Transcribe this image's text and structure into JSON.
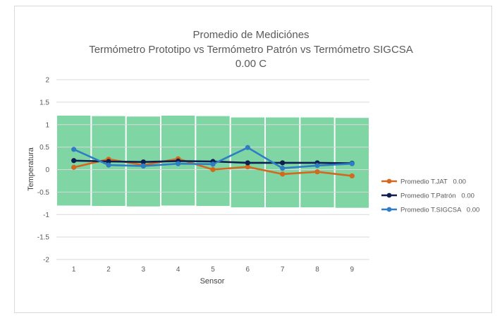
{
  "chart_data": {
    "type": "line",
    "title": "Promedio de Mediciónes",
    "subtitle": "Termómetro Prototipo vs Termómetro Patrón vs Termómetro SIGCSA",
    "subtitle2": "0.00 C",
    "xlabel": "Sensor",
    "ylabel": "Temperatura",
    "categories": [
      "1",
      "2",
      "3",
      "4",
      "5",
      "6",
      "7",
      "8",
      "9"
    ],
    "ylim": [
      -2,
      2
    ],
    "yticks": [
      "2",
      "1.5",
      "1",
      "0.5",
      "0",
      "-0.5",
      "-1",
      "-1.5",
      "-2"
    ],
    "grid": true,
    "legend_position": "right",
    "band": {
      "upper": [
        1.2,
        1.19,
        1.18,
        1.2,
        1.19,
        1.16,
        1.16,
        1.16,
        1.15
      ],
      "lower": [
        -0.8,
        -0.81,
        -0.82,
        -0.8,
        -0.81,
        -0.84,
        -0.84,
        -0.84,
        -0.85
      ],
      "color": "#7fd6a4"
    },
    "series": [
      {
        "name": "Promedio T.JAT   0.00",
        "color": "#d2691e",
        "values": [
          0.05,
          0.23,
          0.1,
          0.24,
          0.0,
          0.06,
          -0.1,
          -0.05,
          -0.14
        ]
      },
      {
        "name": "Promedio T.Patrón   0.00",
        "color": "#0d1f4f",
        "values": [
          0.2,
          0.18,
          0.17,
          0.19,
          0.18,
          0.15,
          0.15,
          0.15,
          0.14
        ]
      },
      {
        "name": "Promedio T.SIGCSA   0.00",
        "color": "#2f7ec4",
        "values": [
          0.45,
          0.1,
          0.08,
          0.13,
          0.12,
          0.49,
          0.03,
          0.09,
          0.13
        ]
      }
    ]
  }
}
